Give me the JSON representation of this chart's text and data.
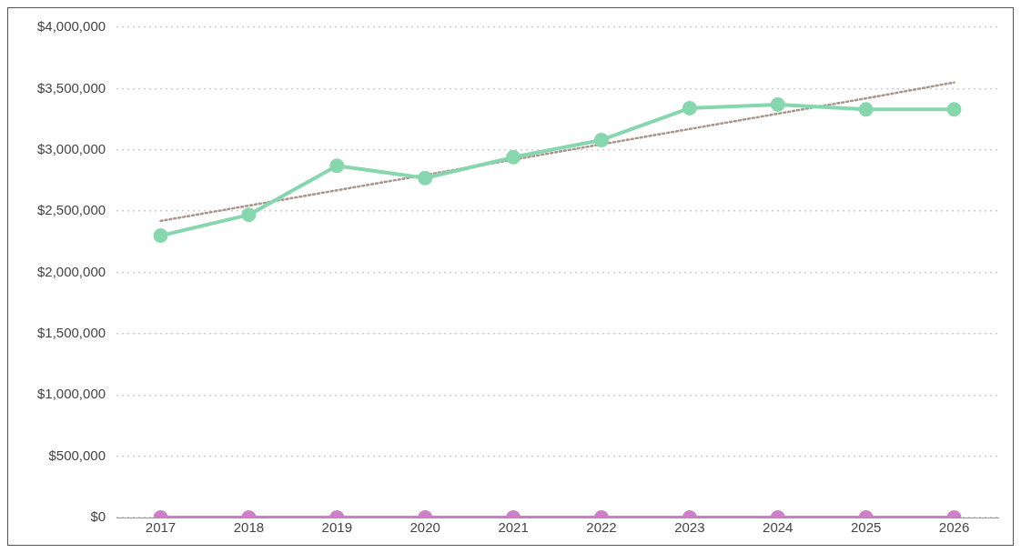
{
  "chart_data": {
    "type": "line",
    "categories": [
      "2017",
      "2018",
      "2019",
      "2020",
      "2021",
      "2022",
      "2023",
      "2024",
      "2025",
      "2026"
    ],
    "series": [
      {
        "color": "#86d6ae",
        "values": [
          2300000,
          2470000,
          2870000,
          2770000,
          2940000,
          3080000,
          3340000,
          3370000,
          3330000,
          3330000
        ]
      },
      {
        "color": "#cf7fc8",
        "values": [
          0,
          0,
          0,
          0,
          0,
          0,
          0,
          0,
          0,
          0
        ]
      },
      {
        "type": "line",
        "color": "#a8968c",
        "values": [
          2420000,
          2545000,
          2670000,
          2795000,
          2920000,
          3045000,
          3170000,
          3295000,
          3420000,
          3550000
        ],
        "marker": "none",
        "line_style": "dotted"
      }
    ],
    "ylim": [
      0,
      4000000
    ],
    "yticks": [
      {
        "value": 0,
        "label": "$0"
      },
      {
        "value": 500000,
        "label": "$500,000"
      },
      {
        "value": 1000000,
        "label": "$1,000,000"
      },
      {
        "value": 1500000,
        "label": "$1,500,000"
      },
      {
        "value": 2000000,
        "label": "$2,000,000"
      },
      {
        "value": 2500000,
        "label": "$2,500,000"
      },
      {
        "value": 3000000,
        "label": "$3,000,000"
      },
      {
        "value": 3500000,
        "label": "$3,500,000"
      },
      {
        "value": 4000000,
        "label": "$4,000,000"
      }
    ],
    "grid": "y",
    "marker": "circle",
    "line_style": "solid",
    "legend": false
  }
}
